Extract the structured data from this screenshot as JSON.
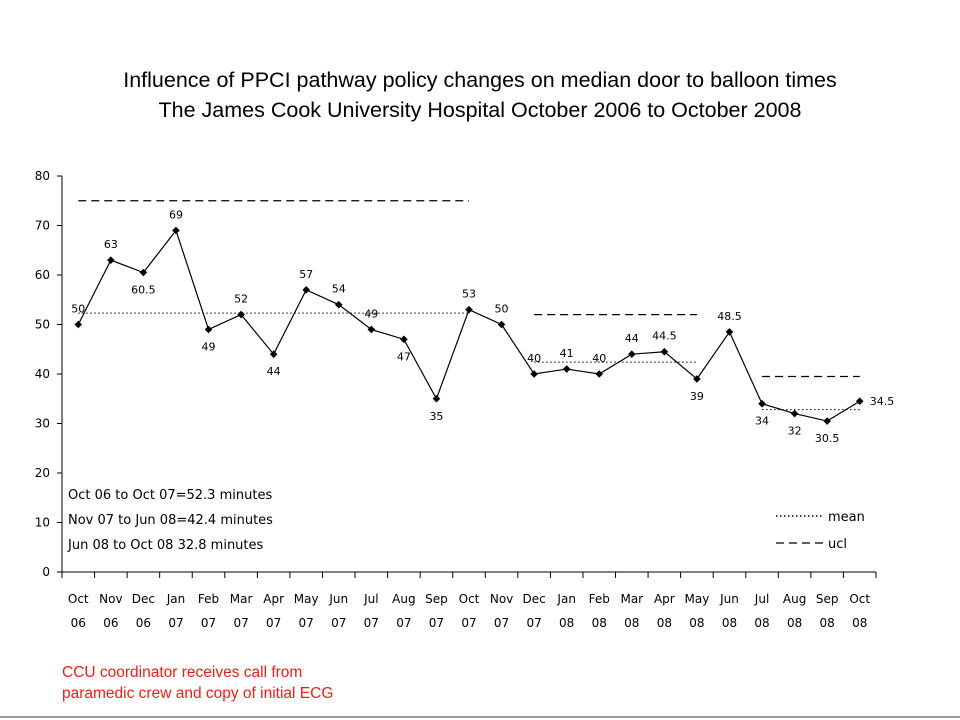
{
  "chart_data": {
    "type": "line",
    "title": "Influence of PPCI pathway policy changes on median door to balloon times",
    "subtitle": "The James Cook University Hospital October 2006 to October 2008",
    "xlabel": "",
    "ylabel": "",
    "ylim": [
      0,
      80
    ],
    "yticks": [
      "0",
      "10",
      "20",
      "30",
      "40",
      "50",
      "60",
      "70",
      "80"
    ],
    "categories": [
      [
        "Oct",
        "06"
      ],
      [
        "Nov",
        "06"
      ],
      [
        "Dec",
        "06"
      ],
      [
        "Jan",
        "07"
      ],
      [
        "Feb",
        "07"
      ],
      [
        "Mar",
        "07"
      ],
      [
        "Apr",
        "07"
      ],
      [
        "May",
        "07"
      ],
      [
        "Jun",
        "07"
      ],
      [
        "Jul",
        "07"
      ],
      [
        "Aug",
        "07"
      ],
      [
        "Sep",
        "07"
      ],
      [
        "Oct",
        "07"
      ],
      [
        "Nov",
        "07"
      ],
      [
        "Dec",
        "07"
      ],
      [
        "Jan",
        "08"
      ],
      [
        "Feb",
        "08"
      ],
      [
        "Mar",
        "08"
      ],
      [
        "Apr",
        "08"
      ],
      [
        "May",
        "08"
      ],
      [
        "Jun",
        "08"
      ],
      [
        "Jul",
        "08"
      ],
      [
        "Aug",
        "08"
      ],
      [
        "Sep",
        "08"
      ],
      [
        "Oct",
        "08"
      ]
    ],
    "series": [
      {
        "values": [
          50,
          63,
          60.5,
          69,
          49,
          52,
          44,
          57,
          54,
          49,
          47,
          35,
          53,
          50,
          40,
          41,
          40,
          44,
          44.5,
          39,
          48.5,
          34,
          32,
          30.5,
          34.5
        ],
        "labels": [
          "50",
          "63",
          "60.5",
          "69",
          "49",
          "52",
          "44",
          "57",
          "54",
          "49",
          "47",
          "35",
          "53",
          "50",
          "40",
          "41",
          "40",
          "44",
          "44.5",
          "39",
          "48.5",
          "34",
          "32",
          "30.5",
          "34.5"
        ],
        "label_pos": [
          "above",
          "above",
          "below",
          "above",
          "below",
          "above",
          "below",
          "above",
          "above",
          "above",
          "below",
          "below",
          "above",
          "above",
          "above",
          "above",
          "above",
          "above",
          "above",
          "below",
          "above",
          "below",
          "below",
          "below",
          "right"
        ],
        "color": "#000000"
      }
    ],
    "reference_lines": [
      {
        "kind": "mean",
        "value": 52.3,
        "from": 0,
        "to": 12
      },
      {
        "kind": "ucl",
        "value": 75,
        "from": 0,
        "to": 12
      },
      {
        "kind": "mean",
        "value": 42.4,
        "from": 14,
        "to": 19
      },
      {
        "kind": "ucl",
        "value": 52,
        "from": 14,
        "to": 19
      },
      {
        "kind": "mean",
        "value": 32.8,
        "from": 21,
        "to": 24
      },
      {
        "kind": "ucl",
        "value": 39.5,
        "from": 21,
        "to": 24
      }
    ],
    "annotations": [
      "Oct 06 to Oct 07=52.3 minutes",
      "Nov 07 to Jun 08=42.4 minutes",
      "Jun 08 to Oct 08 32.8 minutes"
    ],
    "legend": {
      "position": "bottom-right",
      "items": [
        {
          "label": "mean",
          "style": "dotted"
        },
        {
          "label": "ucl",
          "style": "dashed"
        }
      ]
    },
    "grid": false
  },
  "footer": {
    "line1": "CCU coordinator receives call from",
    "line2": "paramedic crew and copy of initial ECG",
    "color": "#e8201a"
  }
}
